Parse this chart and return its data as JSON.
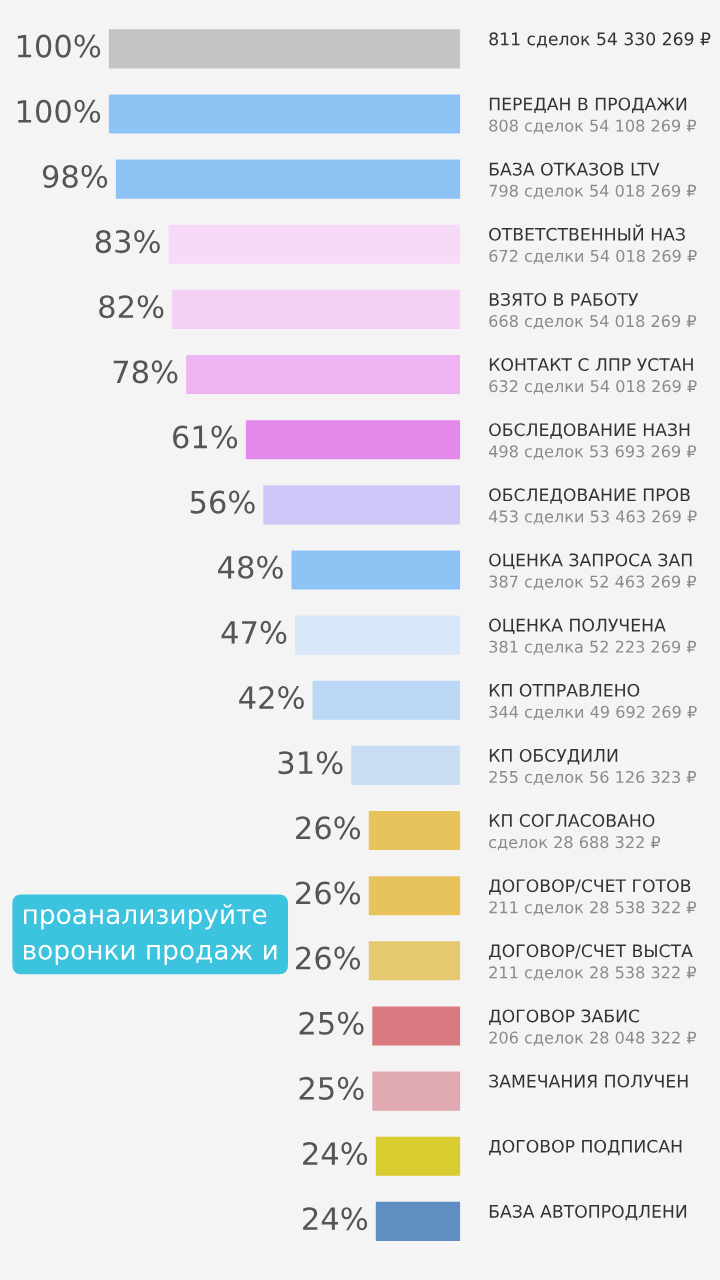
{
  "chart_data": {
    "type": "other",
    "categories": [
      "811 сделок 54 330 269 ₽",
      "ПЕРЕДАН В ПРОДАЖИ\n808 сделок 54 108 269 ₽",
      "БАЗА ОТКАЗОВ LTV\n798 сделок 54 018 269 ₽",
      "ОТВЕТСТВЕННЫЙ НАЗ\n672 сделки 54 018 269 ₽",
      "ВЗЯТО В РАБОТУ\n668 сделок 54 018 269 ₽",
      "КОНТАКТ С ЛПР УСТАН\n632 сделки 54 018 269 ₽",
      "ОБСЛЕДОВАНИЕ НАЗН\n498 сделок 53 693 269 ₽",
      "ОБСЛЕДОВАНИЕ ПРОВ\n453 сделки 53 463 269 ₽",
      "ОЦЕНКА ЗАПРОСА ЗАП\n387 сделок 52 463 269 ₽",
      "ОЦЕНКА ПОЛУЧЕНА\n381 сделка 52 223 269 ₽",
      "КП ОТПРАВЛЕНО\n344 сделки 49 692 269 ₽",
      "КП ОБСУДИЛИ\n255 сделок 56 126 323 ₽",
      "КП СОГЛАСОВАНО\nсделок 28 688 322 ₽",
      "ДОГОВОР/СЧЕТ ГОТОВ\n211 сделок 28 538 322 ₽",
      "ДОГОВОР/СЧЕТ ВЫСТА\n211 сделок 28 538 322 ₽",
      "ДОГОВОР ЗАБИС\n206 сделок 28 048 322 ₽",
      "ЗАМЕЧАНИЯ ПОЛУЧЕН",
      "ДОГОВОР ПОДПИСАН",
      "БАЗА АВТОПРОДЛЕНИ"
    ],
    "values": [
      100,
      100,
      98,
      83,
      82,
      78,
      61,
      56,
      48,
      47,
      42,
      31,
      26,
      26,
      26,
      25,
      25,
      24,
      24
    ],
    "value_labels": [
      "100%",
      "100%",
      "98%",
      "83%",
      "82%",
      "78%",
      "61%",
      "56%",
      "48%",
      "47%",
      "42%",
      "31%",
      "26%",
      "26%",
      "26%",
      "25%",
      "25%",
      "24%",
      "24%"
    ],
    "colors": [
      "#c4c4c4",
      "#8ec3f5",
      "#8ec3f5",
      "#f7d9f8",
      "#f4d0f6",
      "#eeb4f1",
      "#e48aea",
      "#cdc6f6",
      "#8ec3f5",
      "#d8e8f9",
      "#bcd7f6",
      "#c9dcf2",
      "#e8c25a",
      "#e8c25a",
      "#e6c870",
      "#d87a80",
      "#e0a8b0",
      "#d8cc30",
      "#5f8fc2"
    ],
    "annotations": [
      "проанализируйте\nворонки продаж и"
    ]
  }
}
